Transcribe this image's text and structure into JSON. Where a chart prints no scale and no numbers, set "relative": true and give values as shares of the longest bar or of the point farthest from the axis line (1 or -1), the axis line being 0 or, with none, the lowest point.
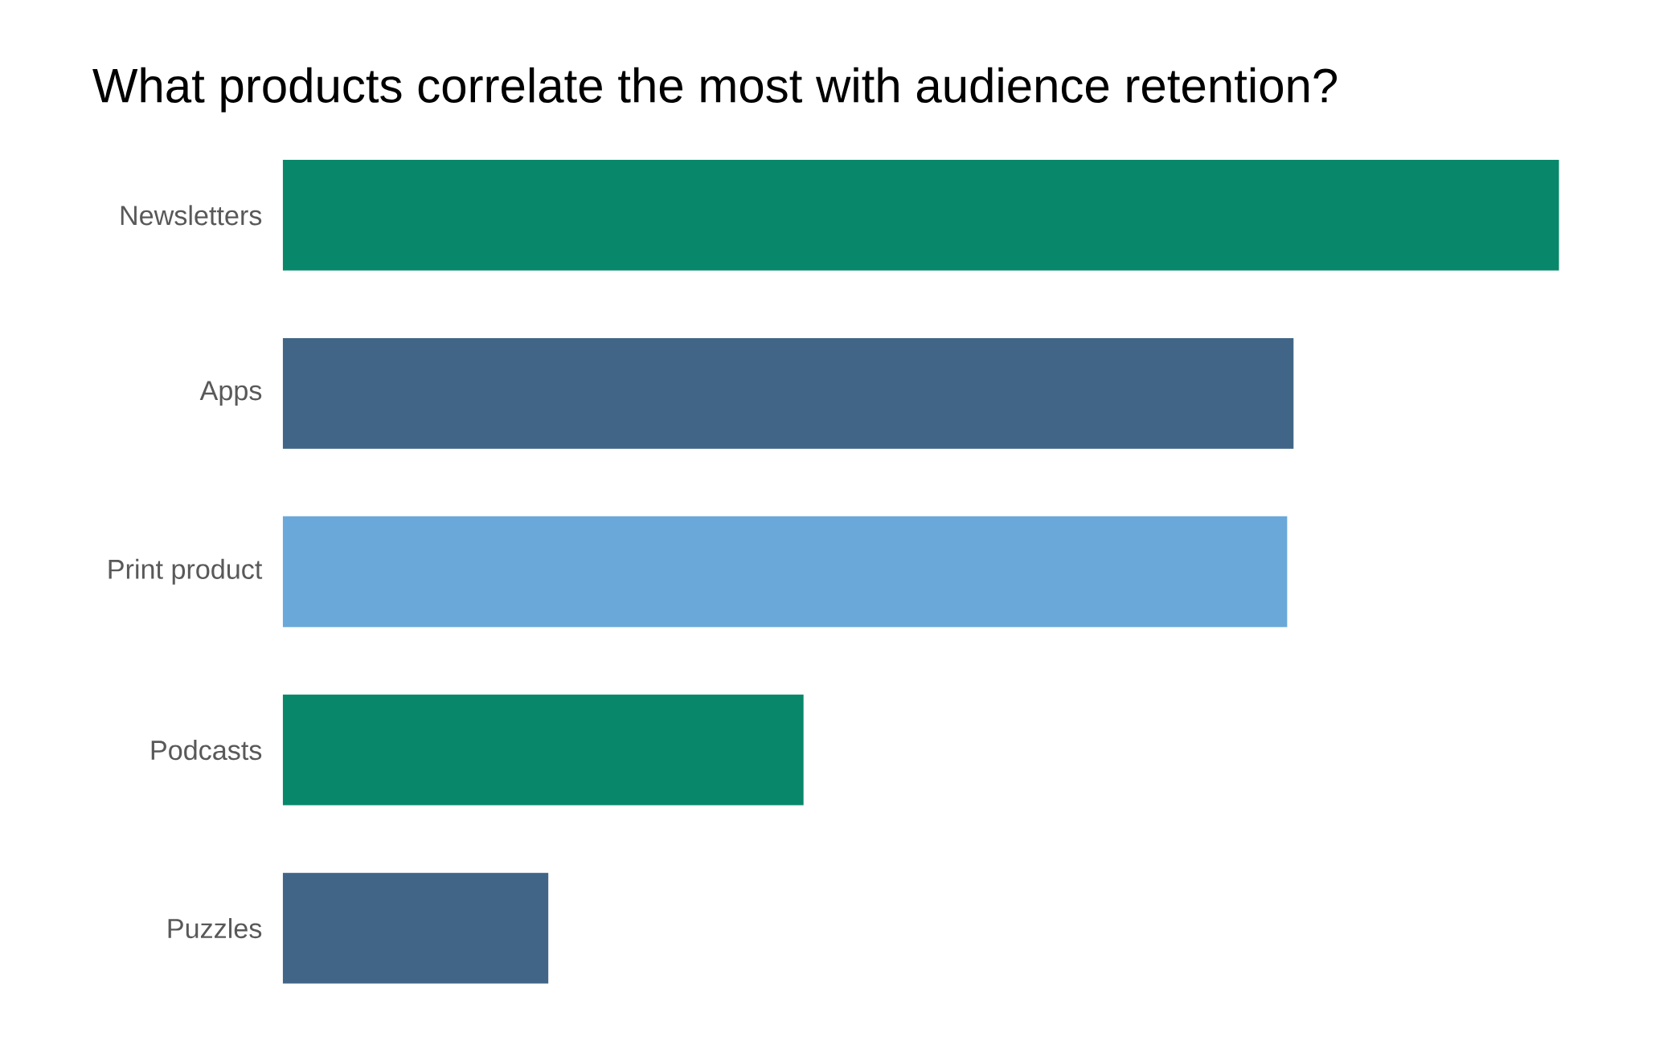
{
  "chart_data": {
    "type": "bar",
    "orientation": "horizontal",
    "relative": true,
    "title": "What products correlate the most with audience retention?",
    "categories": [
      "Newsletters",
      "Apps",
      "Print product",
      "Podcasts",
      "Puzzles"
    ],
    "values": [
      1,
      0.792,
      0.787,
      0.408,
      0.208
    ],
    "colors": [
      "#09876b",
      "#416586",
      "#6aa8da",
      "#09876b",
      "#416586"
    ]
  }
}
